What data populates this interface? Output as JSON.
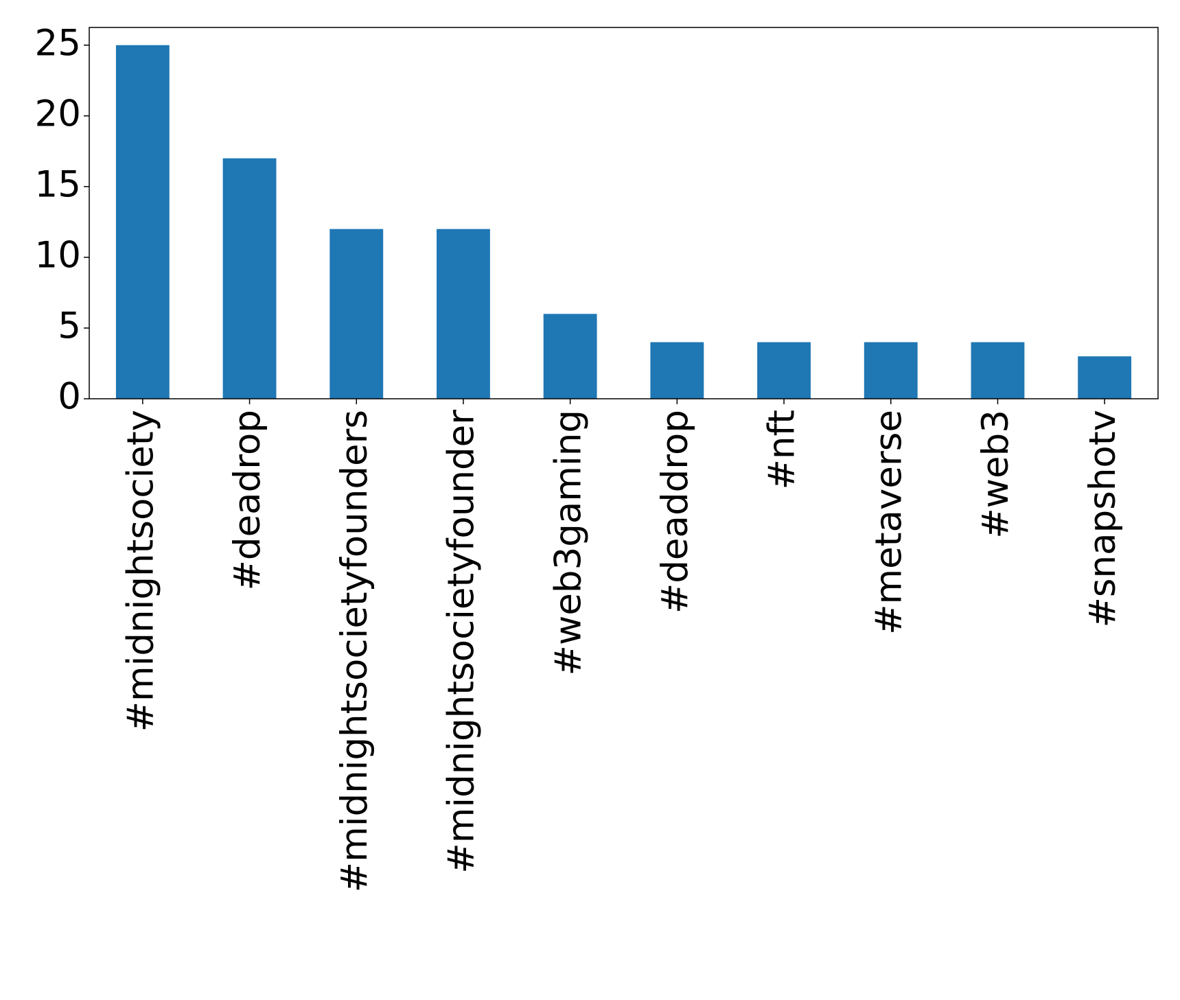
{
  "chart_data": {
    "type": "bar",
    "categories": [
      "#midnightsociety",
      "#deadrop",
      "#midnightsocietyfounders",
      "#midnightsocietyfounder",
      "#web3gaming",
      "#deaddrop",
      "#nft",
      "#metaverse",
      "#web3",
      "#snapshotv"
    ],
    "values": [
      25,
      17,
      12,
      12,
      6,
      4,
      4,
      4,
      4,
      3
    ],
    "color": "#1f77b4",
    "ylim": [
      0,
      26.25
    ],
    "yticks": [
      0,
      5,
      10,
      15,
      20,
      25
    ],
    "grid": false
  }
}
